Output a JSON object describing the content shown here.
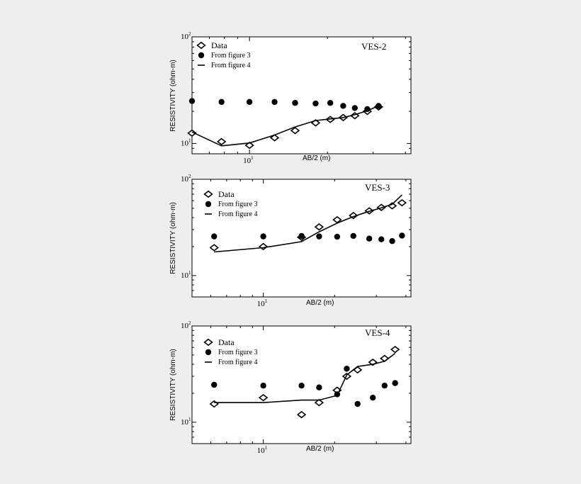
{
  "chart_data": [
    {
      "type": "scatter",
      "panel_label": "VES-2",
      "x_scale": "log",
      "y_scale": "log",
      "xlim": [
        6,
        42
      ],
      "ylim": [
        8,
        100
      ],
      "xlabel": "AB/2 (m)",
      "ylabel": "RESISTIVITY (ohm-m)",
      "x_tick_labels": [
        {
          "base": "10",
          "exp": "1",
          "value": 10
        }
      ],
      "y_tick_labels": [
        {
          "base": "10",
          "exp": "2",
          "value": 100
        },
        {
          "base": "10",
          "exp": "1",
          "value": 10
        }
      ],
      "legend_position": "top-left",
      "series": [
        {
          "name": "Data",
          "marker": "open-diamond",
          "x": [
            6,
            7.8,
            10,
            12.5,
            15,
            18,
            20.5,
            23,
            25.5,
            28.5,
            31.5
          ],
          "y": [
            12.5,
            10.4,
            9.6,
            11.3,
            13.2,
            15.6,
            16.8,
            17.5,
            18.2,
            20,
            22
          ]
        },
        {
          "name": "From figure 3",
          "marker": "filled-circle",
          "x": [
            6,
            7.8,
            10,
            12.5,
            15,
            18,
            20.5,
            23,
            25.5,
            28.5,
            31.5
          ],
          "y": [
            25,
            24.5,
            24.5,
            24.5,
            24,
            23.7,
            24,
            22.5,
            21.5,
            21,
            22.5
          ]
        },
        {
          "name": "From figure 4",
          "marker": "line",
          "x": [
            6,
            7.8,
            10,
            12.5,
            15,
            18,
            20.5,
            23,
            25.5,
            28.5,
            31.5
          ],
          "y": [
            12.8,
            9.5,
            10.1,
            12,
            14.3,
            16.4,
            17,
            17.5,
            18.6,
            20.3,
            22.5
          ]
        }
      ]
    },
    {
      "type": "scatter",
      "panel_label": "VES-3",
      "x_scale": "log",
      "y_scale": "log",
      "xlim": [
        5,
        42
      ],
      "ylim": [
        6,
        100
      ],
      "xlabel": "AB/2 (m)",
      "ylabel": "RESISTIVITY (ohm-m)",
      "x_tick_labels": [
        {
          "base": "10",
          "exp": "1",
          "value": 10
        }
      ],
      "y_tick_labels": [
        {
          "base": "10",
          "exp": "2",
          "value": 100
        },
        {
          "base": "10",
          "exp": "1",
          "value": 10
        }
      ],
      "legend_position": "top-left",
      "series": [
        {
          "name": "Data",
          "marker": "open-diamond",
          "x": [
            6.2,
            10,
            14.5,
            17.2,
            20.5,
            24,
            28,
            31.5,
            35,
            38.5
          ],
          "y": [
            19.5,
            20,
            25,
            32,
            38,
            42,
            47,
            51,
            53,
            57
          ]
        },
        {
          "name": "From figure 3",
          "marker": "filled-circle",
          "x": [
            6.2,
            10,
            14.5,
            17.2,
            20.5,
            24,
            28,
            31.5,
            35,
            38.5
          ],
          "y": [
            25.5,
            25.5,
            25.8,
            25.5,
            25.3,
            25.8,
            24.2,
            23.8,
            22.8,
            26
          ]
        },
        {
          "name": "From figure 4",
          "marker": "line",
          "x": [
            6.2,
            10,
            14.5,
            17.2,
            20.5,
            24,
            28,
            31.5,
            35,
            38.5
          ],
          "y": [
            17.6,
            19.5,
            22.5,
            28.5,
            35,
            41,
            46.5,
            50.5,
            55,
            69
          ]
        }
      ]
    },
    {
      "type": "scatter",
      "panel_label": "VES-4",
      "x_scale": "log",
      "y_scale": "log",
      "xlim": [
        5,
        42
      ],
      "ylim": [
        6,
        100
      ],
      "xlabel": "AB/2 (m)",
      "ylabel": "RESISTIVITY (ohm-m)",
      "x_tick_labels": [
        {
          "base": "10",
          "exp": "1",
          "value": 10
        }
      ],
      "y_tick_labels": [
        {
          "base": "10",
          "exp": "2",
          "value": 100
        },
        {
          "base": "10",
          "exp": "1",
          "value": 10
        }
      ],
      "legend_position": "top-left",
      "series": [
        {
          "name": "Data",
          "marker": "open-diamond",
          "x": [
            6.2,
            10,
            14.5,
            17.2,
            20.5,
            22.5,
            25,
            29,
            32.5,
            36
          ],
          "y": [
            15.5,
            18,
            12,
            16,
            21.5,
            30,
            35,
            42,
            46,
            57
          ]
        },
        {
          "name": "From figure 3",
          "marker": "filled-circle",
          "x": [
            6.2,
            10,
            14.5,
            17.2,
            20.5,
            22.5,
            25,
            29,
            32.5,
            36
          ],
          "y": [
            24.5,
            24,
            24,
            23,
            19.5,
            36,
            15.5,
            18,
            24,
            25.5
          ]
        },
        {
          "name": "From figure 4",
          "marker": "line",
          "x": [
            6.2,
            10,
            14.5,
            17.2,
            20.5,
            22.5,
            25,
            29,
            32.5,
            36
          ],
          "y": [
            16,
            16,
            17,
            17,
            19,
            31,
            38,
            40,
            43,
            52
          ]
        }
      ]
    }
  ]
}
